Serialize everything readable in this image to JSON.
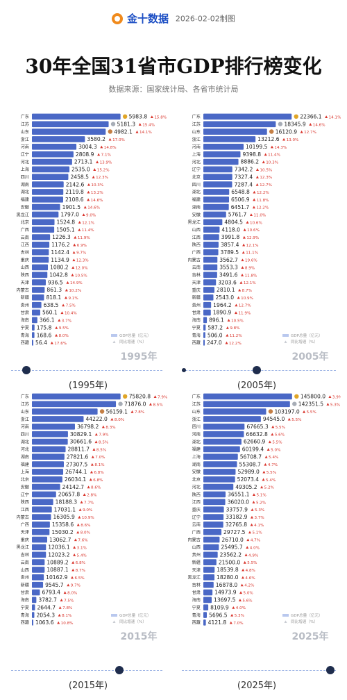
{
  "header": {
    "brand": "金十数据",
    "date": "2026-02-02制图",
    "title": "30年全国31省市GDP排行榜变化",
    "source": "数据来源：国家统计局、各省市统计局"
  },
  "legend": {
    "gdp_label": "GDP总量（亿元）",
    "growth_label": "同比增速（%）"
  },
  "colors": {
    "bar": "#4a68c6",
    "bar_light": "#b9c8ee",
    "up": "#d9342b",
    "down": "#2aa84a",
    "timeline": "#1f2d4d"
  },
  "captions": [
    "(1995年)",
    "(2005年)",
    "(2015年)",
    "(2025年)"
  ],
  "chart_data": [
    {
      "type": "bar",
      "title": "1995年",
      "categories": [
        "广东",
        "江苏",
        "山东",
        "浙江",
        "河南",
        "辽宁",
        "河北",
        "上海",
        "四川",
        "湖南",
        "湖北",
        "福建",
        "安徽",
        "黑龙江",
        "北京",
        "广西",
        "云南",
        "江西",
        "吉林",
        "重庆",
        "山西",
        "陕西",
        "天津",
        "内蒙古",
        "新疆",
        "贵州",
        "甘肃",
        "海南",
        "宁夏",
        "青海",
        "西藏"
      ],
      "values": [
        5983.8,
        5181.3,
        4982.1,
        3580.2,
        3004.3,
        2808.9,
        2713.1,
        2535.0,
        2458.5,
        2142.6,
        2119.8,
        2108.6,
        1901.5,
        1797.0,
        1524.8,
        1505.1,
        1226.3,
        1176.2,
        1142.4,
        1134.9,
        1080.2,
        1042.8,
        936.5,
        861.3,
        818.1,
        638.5,
        560.1,
        366.1,
        175.8,
        168.6,
        56.4
      ],
      "growth": [
        "15.8%",
        "15.4%",
        "14.1%",
        "17.0%",
        "14.8%",
        "7.1%",
        "13.9%",
        "15.2%",
        "12.3%",
        "10.3%",
        "13.2%",
        "14.6%",
        "14.6%",
        "9.0%",
        "12.1%",
        "11.4%",
        "11.9%",
        "6.9%",
        "9.7%",
        "12.3%",
        "12.0%",
        "10.5%",
        "14.9%",
        "10.2%",
        "9.1%",
        "7.5%",
        "10.4%",
        "3.7%",
        "9.5%",
        "8.0%",
        "17.6%"
      ],
      "medals": [
        "gold",
        "silver",
        "bronze"
      ],
      "max": 6000
    },
    {
      "type": "bar",
      "title": "2005年",
      "categories": [
        "广东",
        "江苏",
        "山东",
        "浙江",
        "河南",
        "上海",
        "河北",
        "辽宁",
        "北京",
        "四川",
        "湖北",
        "福建",
        "湖南",
        "安徽",
        "黑龙江",
        "山西",
        "江西",
        "陕西",
        "广西",
        "内蒙古",
        "云南",
        "吉林",
        "天津",
        "重庆",
        "新疆",
        "贵州",
        "甘肃",
        "海南",
        "宁夏",
        "青海",
        "西藏"
      ],
      "values": [
        22366.1,
        18345.9,
        16120.9,
        13212.6,
        10199.5,
        9398.8,
        8886.2,
        7342.2,
        7327.4,
        7287.4,
        6548.8,
        6506.9,
        6451.7,
        5761.7,
        4804.5,
        4118.0,
        3991.8,
        3857.4,
        3789.5,
        3562.7,
        3553.3,
        3491.6,
        3203.6,
        2810.1,
        2543.0,
        1964.2,
        1890.9,
        896.1,
        587.2,
        506.0,
        247.0
      ],
      "growth": [
        "14.1%",
        "14.6%",
        "12.7%",
        "13.0%",
        "14.3%",
        "11.4%",
        "10.3%",
        "10.5%",
        "12.3%",
        "12.7%",
        "12.2%",
        "11.8%",
        "12.2%",
        "11.0%",
        "10.6%",
        "10.6%",
        "12.9%",
        "12.1%",
        "11.1%",
        "19.6%",
        "8.9%",
        "11.8%",
        "12.1%",
        "8.7%",
        "10.9%",
        "12.7%",
        "11.9%",
        "10.5%",
        "9.8%",
        "11.2%",
        "12.2%"
      ],
      "medals": [
        "gold",
        "silver",
        "bronze"
      ],
      "max": 22500
    },
    {
      "type": "bar",
      "title": "2015年",
      "categories": [
        "广东",
        "江苏",
        "山东",
        "浙江",
        "河南",
        "四川",
        "湖北",
        "河北",
        "湖南",
        "福建",
        "上海",
        "北京",
        "安徽",
        "辽宁",
        "陕西",
        "江西",
        "内蒙古",
        "广西",
        "天津",
        "重庆",
        "黑龙江",
        "吉林",
        "云南",
        "山西",
        "贵州",
        "新疆",
        "甘肃",
        "海南",
        "宁夏",
        "青海",
        "西藏"
      ],
      "values": [
        75820.8,
        71876.0,
        56159.1,
        44222.0,
        36798.2,
        30829.1,
        30661.6,
        28811.7,
        27821.6,
        27307.5,
        26744.1,
        26034.1,
        24142.7,
        20657.8,
        18188.3,
        17031.1,
        16305.9,
        15358.6,
        15030.2,
        13062.7,
        12036.1,
        12023.2,
        10889.2,
        10887.1,
        10162.9,
        9545.7,
        6793.4,
        3782.7,
        2644.7,
        2054.3,
        1063.6
      ],
      "growth": [
        "7.9%",
        "8.5%",
        "7.8%",
        "8.0%",
        "8.3%",
        "7.9%",
        "8.5%",
        "8.5%",
        "7.0%",
        "8.1%",
        "6.8%",
        "6.8%",
        "8.6%",
        "2.8%",
        "7.7%",
        "9.0%",
        "10.9%",
        "8.6%",
        "8.0%",
        "7.6%",
        "3.1%",
        "5.4%",
        "6.8%",
        "8.7%",
        "6.5%",
        "9.7%",
        "8.0%",
        "7.5%",
        "7.8%",
        "8.1%",
        "10.8%"
      ],
      "medals": [
        "gold",
        "silver",
        "bronze"
      ],
      "max": 76000
    },
    {
      "type": "bar",
      "title": "2025年",
      "categories": [
        "广东",
        "江苏",
        "山东",
        "浙江",
        "四川",
        "河南",
        "湖北",
        "福建",
        "上海",
        "湖南",
        "安徽",
        "北京",
        "河北",
        "陕西",
        "江西",
        "重庆",
        "辽宁",
        "云南",
        "广西",
        "内蒙古",
        "山西",
        "贵州",
        "新疆",
        "天津",
        "黑龙江",
        "吉林",
        "甘肃",
        "海南",
        "宁夏",
        "青海",
        "西藏"
      ],
      "values": [
        145800.0,
        142351.5,
        103197.0,
        94545.0,
        67665.3,
        66632.8,
        62660.9,
        60199.4,
        56708.7,
        55308.7,
        52989.0,
        52073.4,
        49305.2,
        36551.1,
        36020.0,
        33757.9,
        33182.9,
        32765.8,
        29727.5,
        26710.0,
        25495.7,
        23562.2,
        21500.0,
        18539.8,
        18280.0,
        16878.0,
        14973.9,
        13697.5,
        8109.9,
        5696.5,
        4121.8
      ],
      "growth": [
        "3.9%",
        "5.3%",
        "5.5%",
        "5.5%",
        "5.5%",
        "5.6%",
        "5.5%",
        "5.0%",
        "5.4%",
        "4.7%",
        "5.5%",
        "5.4%",
        "5.2%",
        "5.1%",
        "5.2%",
        "5.3%",
        "3.7%",
        "4.1%",
        "5.1%",
        "4.7%",
        "4.0%",
        "4.9%",
        "5.5%",
        "4.8%",
        "4.6%",
        "4.2%",
        "5.0%",
        "5.6%",
        "4.0%",
        "5.3%",
        "7.0%"
      ],
      "medals": [
        "gold",
        "silver",
        "bronze"
      ],
      "max": 146000
    }
  ]
}
